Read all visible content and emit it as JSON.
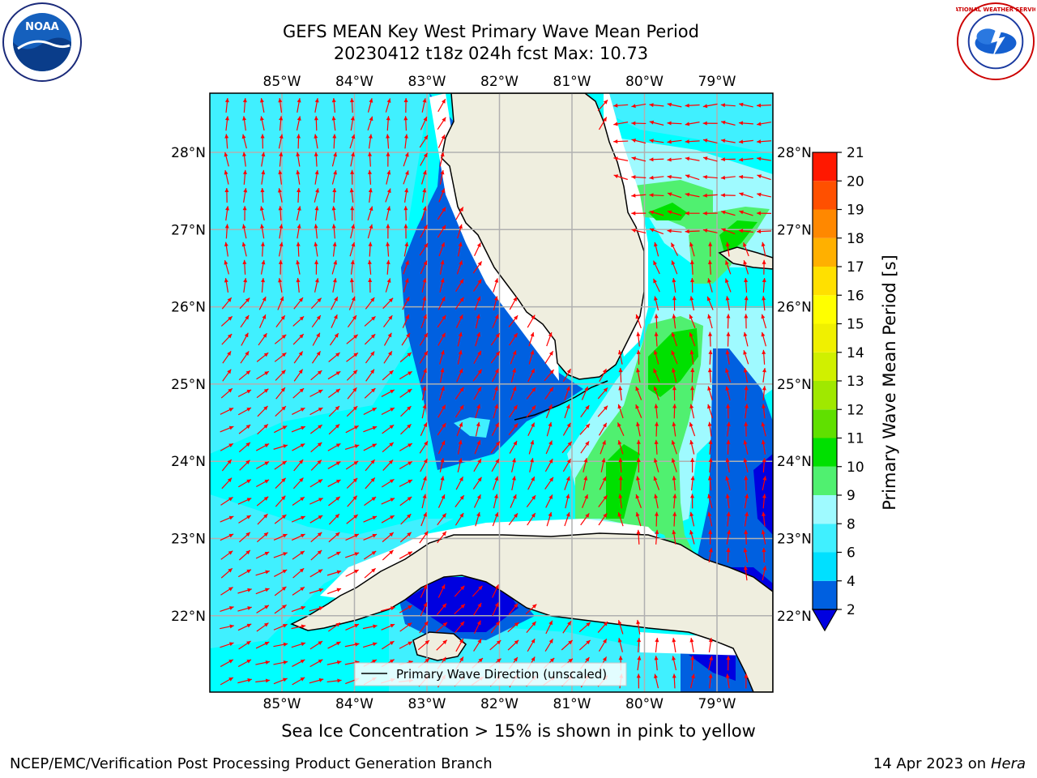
{
  "title_line1": "GEFS MEAN Key West Primary Wave Mean Period",
  "title_line2": "20230412 t18z 024h fcst   Max: 10.73",
  "caption": "Sea Ice Concentration > 15% is shown in pink to yellow",
  "footer_left": "NCEP/EMC/Verification Post Processing Product Generation Branch",
  "footer_date": "14 Apr 2023 on ",
  "footer_machine": "Hera",
  "legend_label": "Primary Wave Direction (unscaled)",
  "logos": {
    "left": "NOAA",
    "right": "NATIONAL WEATHER SERVICE"
  },
  "colorbar": {
    "label": "Primary Wave Mean Period [s]",
    "ticks": [
      "2",
      "4",
      "6",
      "8",
      "9",
      "10",
      "11",
      "12",
      "13",
      "14",
      "15",
      "16",
      "17",
      "18",
      "19",
      "20",
      "21"
    ],
    "colors": [
      "#0060e0",
      "#00e0ff",
      "#40f0ff",
      "#9ffaff",
      "#50f070",
      "#00e000",
      "#60e000",
      "#a0e800",
      "#d0f000",
      "#f0f000",
      "#ffff00",
      "#ffe000",
      "#ffb000",
      "#ff8800",
      "#ff5000",
      "#ff1800"
    ],
    "under_color": "#0000e0"
  },
  "map": {
    "lon_labels": [
      "85°W",
      "84°W",
      "83°W",
      "82°W",
      "81°W",
      "80°W",
      "79°W"
    ],
    "lat_labels": [
      "28°N",
      "27°N",
      "26°N",
      "25°N",
      "24°N",
      "23°N",
      "22°N"
    ],
    "lon_range": [
      -86.0,
      -78.25
    ],
    "lat_range": [
      21.05,
      28.78
    ],
    "arrow_color": "#ff0000",
    "land_color": "#efeedf",
    "ocean_base_color": "#00ffff"
  }
}
